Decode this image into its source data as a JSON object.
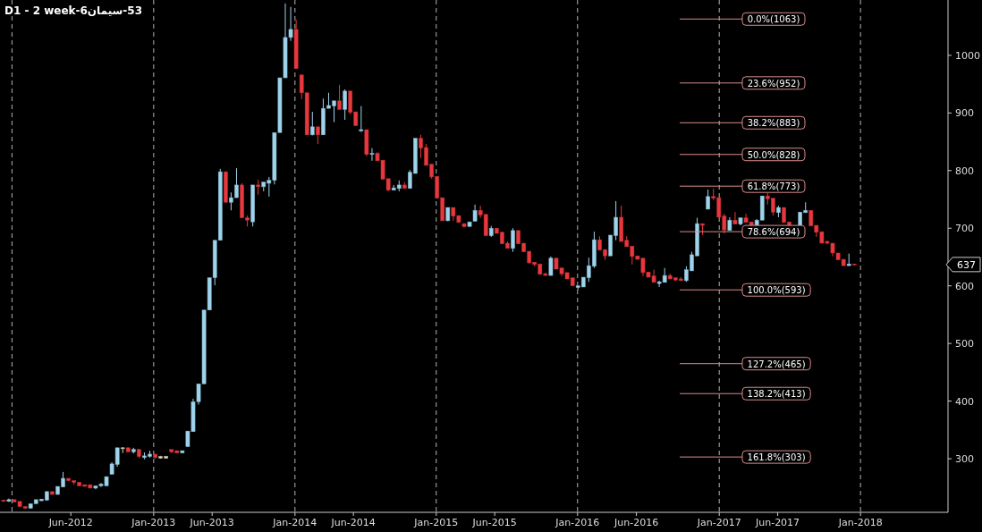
{
  "chart_data": {
    "type": "candlestick",
    "title": "D1 - 2 week-سیمان6‎-53",
    "xlim": [
      "2011-12-01",
      "2018-08-15"
    ],
    "xticks": [
      {
        "value": "2012-06-01",
        "label": "Jun-2012"
      },
      {
        "value": "2013-01-01",
        "label": "Jan-2013"
      },
      {
        "value": "2013-06-01",
        "label": "Jun-2013"
      },
      {
        "value": "2014-01-01",
        "label": "Jan-2014"
      },
      {
        "value": "2014-06-01",
        "label": "Jun-2014"
      },
      {
        "value": "2015-01-01",
        "label": "Jan-2015"
      },
      {
        "value": "2015-06-01",
        "label": "Jun-2015"
      },
      {
        "value": "2016-01-01",
        "label": "Jan-2016"
      },
      {
        "value": "2016-06-01",
        "label": "Jun-2016"
      },
      {
        "value": "2017-01-01",
        "label": "Jan-2017"
      },
      {
        "value": "2017-06-01",
        "label": "Jun-2017"
      },
      {
        "value": "2018-01-01",
        "label": "Jan-2018"
      }
    ],
    "ylim": [
      207,
      1096
    ],
    "yticks": [
      300,
      400,
      500,
      600,
      700,
      800,
      900,
      1000
    ],
    "x": [
      "2011-12-10",
      "2011-12-24",
      "2012-01-07",
      "2012-01-21",
      "2012-02-04",
      "2012-02-18",
      "2012-03-03",
      "2012-03-17",
      "2012-03-31",
      "2012-04-14",
      "2012-04-28",
      "2012-05-12",
      "2012-05-26",
      "2012-06-09",
      "2012-06-23",
      "2012-07-07",
      "2012-07-21",
      "2012-08-04",
      "2012-08-18",
      "2012-09-01",
      "2012-09-15",
      "2012-09-29",
      "2012-10-13",
      "2012-10-27",
      "2012-11-10",
      "2012-11-24",
      "2012-12-08",
      "2012-12-22",
      "2013-01-05",
      "2013-01-19",
      "2013-02-02",
      "2013-02-16",
      "2013-03-02",
      "2013-03-16",
      "2013-03-30",
      "2013-04-13",
      "2013-04-27",
      "2013-05-11",
      "2013-05-25",
      "2013-06-08",
      "2013-06-22",
      "2013-07-06",
      "2013-07-20",
      "2013-08-03",
      "2013-08-17",
      "2013-08-31",
      "2013-09-14",
      "2013-09-28",
      "2013-10-12",
      "2013-10-26",
      "2013-11-09",
      "2013-11-23",
      "2013-12-07",
      "2013-12-21",
      "2014-01-04",
      "2014-01-18",
      "2014-02-01",
      "2014-02-15",
      "2014-03-01",
      "2014-03-15",
      "2014-03-29",
      "2014-04-12",
      "2014-04-26",
      "2014-05-10",
      "2014-05-24",
      "2014-06-07",
      "2014-06-21",
      "2014-07-05",
      "2014-07-19",
      "2014-08-02",
      "2014-08-16",
      "2014-08-30",
      "2014-09-13",
      "2014-09-27",
      "2014-10-11",
      "2014-10-25",
      "2014-11-08",
      "2014-11-22",
      "2014-12-06",
      "2014-12-20",
      "2015-01-03",
      "2015-01-17",
      "2015-01-31",
      "2015-02-14",
      "2015-02-28",
      "2015-03-14",
      "2015-03-28",
      "2015-04-11",
      "2015-04-25",
      "2015-05-09",
      "2015-05-23",
      "2015-06-06",
      "2015-06-20",
      "2015-07-04",
      "2015-07-18",
      "2015-08-01",
      "2015-08-15",
      "2015-08-29",
      "2015-09-12",
      "2015-09-26",
      "2015-10-10",
      "2015-10-24",
      "2015-11-07",
      "2015-11-21",
      "2015-12-05",
      "2015-12-19",
      "2016-01-02",
      "2016-01-16",
      "2016-01-30",
      "2016-02-13",
      "2016-02-27",
      "2016-03-12",
      "2016-03-26",
      "2016-04-09",
      "2016-04-23",
      "2016-05-07",
      "2016-05-21",
      "2016-06-04",
      "2016-06-18",
      "2016-07-02",
      "2016-07-16",
      "2016-07-30",
      "2016-08-13",
      "2016-08-27",
      "2016-09-10",
      "2016-09-24",
      "2016-10-08",
      "2016-10-22",
      "2016-11-05",
      "2016-11-19",
      "2016-12-03",
      "2016-12-17",
      "2016-12-31",
      "2017-01-14",
      "2017-01-28",
      "2017-02-11",
      "2017-02-25",
      "2017-03-11",
      "2017-03-25",
      "2017-04-08",
      "2017-04-22",
      "2017-05-06",
      "2017-05-20",
      "2017-06-03",
      "2017-06-17",
      "2017-07-01",
      "2017-07-29",
      "2017-08-12",
      "2017-08-26",
      "2017-09-09",
      "2017-09-23",
      "2017-10-07",
      "2017-10-21",
      "2017-11-04",
      "2017-11-18",
      "2017-12-02",
      "2017-12-16"
    ],
    "ohlc": [
      [
        228,
        229,
        225,
        226
      ],
      [
        226,
        231,
        225,
        229
      ],
      [
        229,
        229,
        225,
        225
      ],
      [
        226,
        226,
        217,
        217
      ],
      [
        217,
        217,
        213,
        214
      ],
      [
        214,
        222,
        214,
        222
      ],
      [
        222,
        229,
        222,
        229
      ],
      [
        227,
        230,
        227,
        230
      ],
      [
        228,
        243,
        228,
        243
      ],
      [
        243,
        243,
        238,
        238
      ],
      [
        238,
        252,
        238,
        252
      ],
      [
        251,
        277,
        251,
        266
      ],
      [
        266,
        266,
        262,
        262
      ],
      [
        262,
        262,
        255,
        259
      ],
      [
        259,
        259,
        253,
        253
      ],
      [
        255,
        255,
        252,
        252
      ],
      [
        255,
        255,
        249,
        249
      ],
      [
        249,
        253,
        247,
        253
      ],
      [
        253,
        258,
        251,
        256
      ],
      [
        253,
        269,
        253,
        269
      ],
      [
        273,
        294,
        273,
        291
      ],
      [
        290,
        319,
        286,
        319
      ],
      [
        318,
        320,
        310,
        319
      ],
      [
        319,
        319,
        312,
        312
      ],
      [
        312,
        319,
        309,
        316
      ],
      [
        316,
        317,
        301,
        304
      ],
      [
        302,
        311,
        299,
        305
      ],
      [
        304,
        314,
        302,
        308
      ],
      [
        308,
        308,
        300,
        302
      ],
      [
        301,
        305,
        300,
        304
      ],
      [
        301,
        305,
        300,
        304
      ],
      [
        316,
        316,
        310,
        312
      ],
      [
        314,
        314,
        310,
        310
      ],
      [
        310,
        314,
        310,
        314
      ],
      [
        321,
        348,
        321,
        348
      ],
      [
        347,
        404,
        347,
        399
      ],
      [
        399,
        430,
        394,
        430
      ],
      [
        430,
        558,
        430,
        558
      ],
      [
        558,
        614,
        558,
        614
      ],
      [
        614,
        679,
        601,
        679
      ],
      [
        679,
        803,
        679,
        798
      ],
      [
        798,
        798,
        745,
        745
      ],
      [
        745,
        762,
        731,
        753
      ],
      [
        753,
        804,
        753,
        775
      ],
      [
        775,
        778,
        718,
        718
      ],
      [
        718,
        722,
        703,
        714
      ],
      [
        711,
        775,
        703,
        775
      ],
      [
        775,
        784,
        758,
        772
      ],
      [
        772,
        780,
        764,
        780
      ],
      [
        778,
        789,
        755,
        783
      ],
      [
        783,
        866,
        776,
        866
      ],
      [
        866,
        961,
        866,
        961
      ],
      [
        961,
        1090,
        961,
        1031
      ],
      [
        1031,
        1084,
        1025,
        1045
      ],
      [
        1045,
        1062,
        977,
        977
      ],
      [
        966,
        966,
        924,
        935
      ],
      [
        935,
        935,
        862,
        862
      ],
      [
        862,
        902,
        861,
        876
      ],
      [
        876,
        876,
        846,
        862
      ],
      [
        862,
        925,
        862,
        908
      ],
      [
        908,
        935,
        908,
        913
      ],
      [
        912,
        921,
        884,
        921
      ],
      [
        921,
        949,
        906,
        906
      ],
      [
        906,
        941,
        888,
        938
      ],
      [
        938,
        938,
        898,
        901
      ],
      [
        902,
        902,
        878,
        878
      ],
      [
        869,
        912,
        867,
        871
      ],
      [
        871,
        871,
        825,
        828
      ],
      [
        828,
        839,
        817,
        830
      ],
      [
        830,
        832,
        817,
        817
      ],
      [
        818,
        818,
        785,
        785
      ],
      [
        786,
        786,
        764,
        766
      ],
      [
        766,
        775,
        766,
        770
      ],
      [
        769,
        783,
        764,
        775
      ],
      [
        775,
        780,
        769,
        769
      ],
      [
        769,
        801,
        769,
        797
      ],
      [
        795,
        856,
        795,
        856
      ],
      [
        856,
        862,
        822,
        839
      ],
      [
        840,
        846,
        809,
        809
      ],
      [
        811,
        811,
        786,
        789
      ],
      [
        790,
        790,
        752,
        752
      ],
      [
        753,
        753,
        713,
        713
      ],
      [
        713,
        736,
        712,
        736
      ],
      [
        736,
        736,
        713,
        721
      ],
      [
        722,
        722,
        710,
        710
      ],
      [
        708,
        708,
        701,
        703
      ],
      [
        703,
        711,
        703,
        711
      ],
      [
        712,
        741,
        712,
        731
      ],
      [
        731,
        739,
        718,
        723
      ],
      [
        724,
        724,
        687,
        687
      ],
      [
        687,
        704,
        685,
        700
      ],
      [
        700,
        700,
        691,
        691
      ],
      [
        693,
        693,
        673,
        673
      ],
      [
        674,
        677,
        665,
        665
      ],
      [
        665,
        700,
        659,
        696
      ],
      [
        696,
        696,
        673,
        673
      ],
      [
        674,
        674,
        659,
        659
      ],
      [
        660,
        660,
        638,
        640
      ],
      [
        641,
        641,
        634,
        637
      ],
      [
        638,
        638,
        620,
        620
      ],
      [
        621,
        623,
        618,
        618
      ],
      [
        618,
        651,
        618,
        648
      ],
      [
        648,
        648,
        629,
        629
      ],
      [
        631,
        631,
        617,
        621
      ],
      [
        623,
        623,
        612,
        612
      ],
      [
        614,
        614,
        600,
        600
      ],
      [
        597,
        600,
        593,
        600
      ],
      [
        598,
        615,
        598,
        615
      ],
      [
        614,
        649,
        607,
        635
      ],
      [
        634,
        694,
        631,
        680
      ],
      [
        680,
        686,
        662,
        662
      ],
      [
        663,
        663,
        645,
        652
      ],
      [
        652,
        688,
        652,
        688
      ],
      [
        687,
        747,
        679,
        719
      ],
      [
        719,
        739,
        677,
        677
      ],
      [
        679,
        686,
        668,
        668
      ],
      [
        669,
        669,
        637,
        651
      ],
      [
        652,
        652,
        646,
        646
      ],
      [
        648,
        648,
        617,
        623
      ],
      [
        624,
        624,
        615,
        615
      ],
      [
        617,
        628,
        606,
        606
      ],
      [
        604,
        609,
        598,
        607
      ],
      [
        606,
        631,
        606,
        618
      ],
      [
        618,
        621,
        612,
        612
      ],
      [
        614,
        614,
        609,
        610
      ],
      [
        612,
        615,
        609,
        609
      ],
      [
        609,
        634,
        607,
        628
      ],
      [
        626,
        659,
        626,
        654
      ],
      [
        652,
        718,
        652,
        708
      ],
      [
        708,
        708,
        688,
        705
      ],
      [
        733,
        767,
        733,
        755
      ],
      [
        755,
        769,
        749,
        752
      ],
      [
        753,
        753,
        719,
        719
      ],
      [
        721,
        725,
        691,
        697
      ],
      [
        696,
        719,
        696,
        714
      ],
      [
        714,
        728,
        707,
        707
      ],
      [
        707,
        718,
        705,
        718
      ],
      [
        718,
        725,
        710,
        710
      ],
      [
        711,
        711,
        702,
        705
      ],
      [
        705,
        716,
        705,
        714
      ],
      [
        714,
        756,
        714,
        756
      ],
      [
        756,
        761,
        741,
        751
      ],
      [
        752,
        752,
        722,
        728
      ],
      [
        727,
        739,
        719,
        736
      ],
      [
        736,
        736,
        710,
        710
      ],
      [
        711,
        711,
        705,
        705
      ],
      [
        703,
        728,
        703,
        728
      ],
      [
        727,
        745,
        727,
        731
      ],
      [
        731,
        731,
        704,
        704
      ],
      [
        705,
        705,
        685,
        693
      ],
      [
        694,
        694,
        674,
        674
      ],
      [
        677,
        679,
        672,
        674
      ],
      [
        674,
        674,
        651,
        657
      ],
      [
        657,
        657,
        645,
        645
      ],
      [
        646,
        646,
        635,
        635
      ],
      [
        635,
        656,
        635,
        638
      ],
      [
        638,
        638,
        635,
        637
      ]
    ],
    "colors": [
      "#e8383d",
      "#9dd4ec",
      "#e8383d",
      "#e8383d",
      "#e8383d",
      "#9dd4ec",
      "#9dd4ec",
      "#9dd4ec",
      "#9dd4ec",
      "#e8383d",
      "#9dd4ec",
      "#9dd4ec",
      "#e8383d",
      "#e8383d",
      "#e8383d",
      "#e8383d",
      "#e8383d",
      "#9dd4ec",
      "#9dd4ec",
      "#9dd4ec",
      "#9dd4ec",
      "#9dd4ec",
      "#e0d8c0",
      "#e8383d",
      "#9dd4ec",
      "#e8383d",
      "#9dd4ec",
      "#9dd4ec",
      "#e8383d",
      "#e0d8c0",
      "#e0d8c0",
      "#e8383d",
      "#e8383d",
      "#9dd4ec",
      "#9dd4ec",
      "#9dd4ec",
      "#9dd4ec",
      "#9dd4ec",
      "#9dd4ec",
      "#9dd4ec",
      "#9dd4ec",
      "#e8383d",
      "#9dd4ec",
      "#9dd4ec",
      "#e8383d",
      "#e8383d",
      "#9dd4ec",
      "#e8383d",
      "#9dd4ec",
      "#9dd4ec",
      "#9dd4ec",
      "#9dd4ec",
      "#9dd4ec",
      "#9dd4ec",
      "#e8383d",
      "#e8383d",
      "#e8383d",
      "#9dd4ec",
      "#e8383d",
      "#9dd4ec",
      "#9dd4ec",
      "#9dd4ec",
      "#e8383d",
      "#9dd4ec",
      "#e8383d",
      "#e8383d",
      "#9dd4ec",
      "#e8383d",
      "#9dd4ec",
      "#e8383d",
      "#e8383d",
      "#e8383d",
      "#9dd4ec",
      "#9dd4ec",
      "#e8383d",
      "#9dd4ec",
      "#9dd4ec",
      "#e8383d",
      "#e8383d",
      "#e8383d",
      "#e8383d",
      "#e8383d",
      "#9dd4ec",
      "#e8383d",
      "#e8383d",
      "#e8383d",
      "#9dd4ec",
      "#9dd4ec",
      "#e8383d",
      "#e8383d",
      "#9dd4ec",
      "#e8383d",
      "#e8383d",
      "#e8383d",
      "#9dd4ec",
      "#e8383d",
      "#e8383d",
      "#e8383d",
      "#e8383d",
      "#e8383d",
      "#e8383d",
      "#9dd4ec",
      "#e8383d",
      "#e8383d",
      "#e8383d",
      "#e8383d",
      "#9dd4ec",
      "#9dd4ec",
      "#9dd4ec",
      "#9dd4ec",
      "#e8383d",
      "#e8383d",
      "#9dd4ec",
      "#9dd4ec",
      "#e8383d",
      "#e8383d",
      "#e8383d",
      "#e8383d",
      "#e8383d",
      "#e8383d",
      "#e8383d",
      "#9dd4ec",
      "#9dd4ec",
      "#e8383d",
      "#e8383d",
      "#e8383d",
      "#9dd4ec",
      "#9dd4ec",
      "#9dd4ec",
      "#e8383d",
      "#9dd4ec",
      "#e8383d",
      "#e8383d",
      "#e8383d",
      "#9dd4ec",
      "#e8383d",
      "#9dd4ec",
      "#e8383d",
      "#e8383d",
      "#9dd4ec",
      "#9dd4ec",
      "#e8383d",
      "#e8383d",
      "#9dd4ec",
      "#e8383d",
      "#e8383d",
      "#9dd4ec",
      "#9dd4ec",
      "#e8383d",
      "#e8383d",
      "#e8383d",
      "#e8383d",
      "#e8383d",
      "#e8383d",
      "#e8383d",
      "#9dd4ec",
      "#e8383d"
    ],
    "ref_lines": [
      {
        "axis": "x",
        "value": "2012-01-01",
        "color": "#b4b4b4",
        "line_style": "dashed"
      },
      {
        "axis": "x",
        "value": "2013-01-01",
        "color": "#b4b4b4",
        "line_style": "dashed"
      },
      {
        "axis": "x",
        "value": "2014-01-01",
        "color": "#b4b4b4",
        "line_style": "dashed"
      },
      {
        "axis": "x",
        "value": "2015-01-01",
        "color": "#b4b4b4",
        "line_style": "dashed"
      },
      {
        "axis": "x",
        "value": "2016-01-01",
        "color": "#b4b4b4",
        "line_style": "dashed"
      },
      {
        "axis": "x",
        "value": "2017-01-01",
        "color": "#b4b4b4",
        "line_style": "dashed"
      },
      {
        "axis": "x",
        "value": "2018-01-01",
        "color": "#b4b4b4",
        "line_style": "dashed"
      },
      {
        "axis": "y",
        "value": 1063,
        "label": "0.0%(1063)",
        "color": "#d98c8c"
      },
      {
        "axis": "y",
        "value": 952,
        "label": "23.6%(952)",
        "color": "#d98c8c"
      },
      {
        "axis": "y",
        "value": 883,
        "label": "38.2%(883)",
        "color": "#d98c8c"
      },
      {
        "axis": "y",
        "value": 828,
        "label": "50.0%(828)",
        "color": "#d98c8c"
      },
      {
        "axis": "y",
        "value": 773,
        "label": "61.8%(773)",
        "color": "#d98c8c"
      },
      {
        "axis": "y",
        "value": 694,
        "label": "78.6%(694)",
        "color": "#d98c8c"
      },
      {
        "axis": "y",
        "value": 593,
        "label": "100.0%(593)",
        "color": "#d98c8c"
      },
      {
        "axis": "y",
        "value": 465,
        "label": "127.2%(465)",
        "color": "#d98c8c"
      },
      {
        "axis": "y",
        "value": 413,
        "label": "138.2%(413)",
        "color": "#d98c8c"
      },
      {
        "axis": "y",
        "value": 303,
        "label": "161.8%(303)",
        "color": "#d98c8c"
      }
    ],
    "annotations": [
      "637"
    ]
  }
}
